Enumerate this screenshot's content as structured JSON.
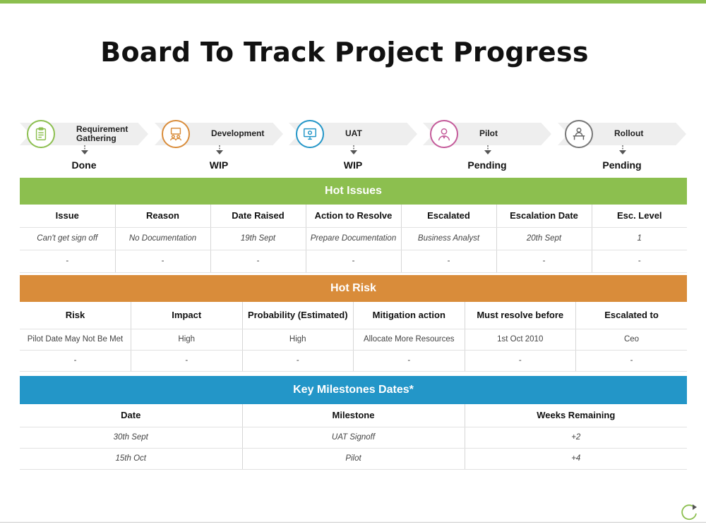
{
  "title": "Board To Track Project Progress",
  "colors": {
    "green": "#8cbf4f",
    "orange": "#d98c3a",
    "blue": "#2396c8"
  },
  "stages": [
    {
      "label": "Requirement Gathering",
      "status": "Done",
      "icon": "clipboard-icon"
    },
    {
      "label": "Development",
      "status": "WIP",
      "icon": "team-presentation-icon"
    },
    {
      "label": "UAT",
      "status": "WIP",
      "icon": "monitor-icon"
    },
    {
      "label": "Pilot",
      "status": "Pending",
      "icon": "person-icon"
    },
    {
      "label": "Rollout",
      "status": "Pending",
      "icon": "desk-worker-icon"
    }
  ],
  "hot_issues": {
    "title": "Hot Issues",
    "columns": [
      "Issue",
      "Reason",
      "Date Raised",
      "Action  to Resolve",
      "Escalated",
      "Escalation Date",
      "Esc. Level"
    ],
    "rows": [
      [
        "Can't get sign off",
        "No Documentation",
        "19th Sept",
        "Prepare Documentation",
        "Business Analyst",
        "20th Sept",
        "1"
      ],
      [
        "-",
        "-",
        "-",
        "-",
        "-",
        "-",
        "-"
      ]
    ]
  },
  "hot_risk": {
    "title": "Hot Risk",
    "columns": [
      "Risk",
      "Impact",
      "Probability  (Estimated)",
      "Mitigation  action",
      "Must resolve before",
      "Escalated to"
    ],
    "rows": [
      [
        "Pilot Date May Not Be Met",
        "High",
        "High",
        "Allocate More Resources",
        "1st Oct 2010",
        "Ceo"
      ],
      [
        "-",
        "-",
        "-",
        "-",
        "-",
        "-"
      ]
    ]
  },
  "milestones": {
    "title": "Key Milestones Dates*",
    "columns": [
      "Date",
      "Milestone",
      "Weeks Remaining"
    ],
    "rows": [
      [
        "30th Sept",
        "UAT Signoff",
        "+2"
      ],
      [
        "15th Oct",
        "Pilot",
        "+4"
      ]
    ]
  }
}
